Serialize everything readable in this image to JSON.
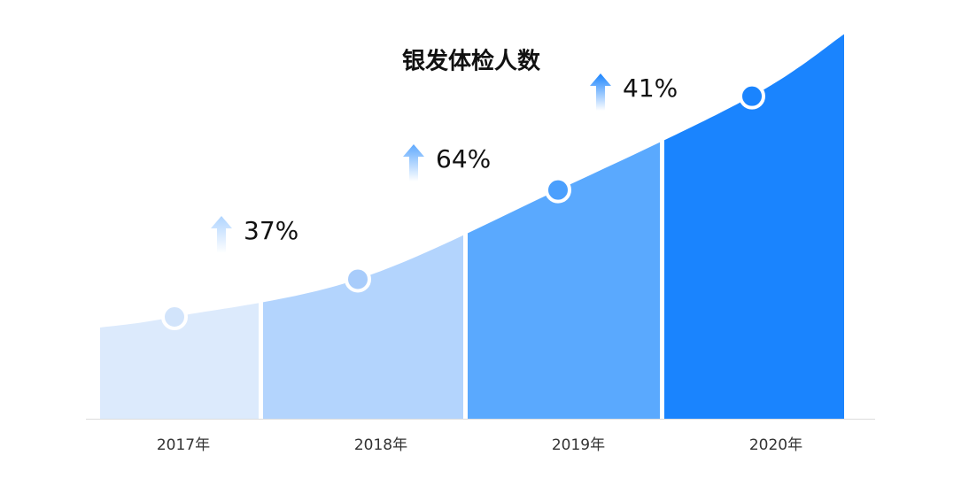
{
  "chart_data": {
    "type": "growth-area",
    "title": "银发体检人数",
    "categories": [
      "2017年",
      "2018年",
      "2019年",
      "2020年"
    ],
    "colors": [
      "#dceafc",
      "#b3d4fd",
      "#5aa9fe",
      "#1a84fe"
    ],
    "growth": {
      "values": [
        37,
        64,
        41
      ],
      "value_labels": [
        "37%",
        "64%",
        "41%"
      ]
    }
  }
}
